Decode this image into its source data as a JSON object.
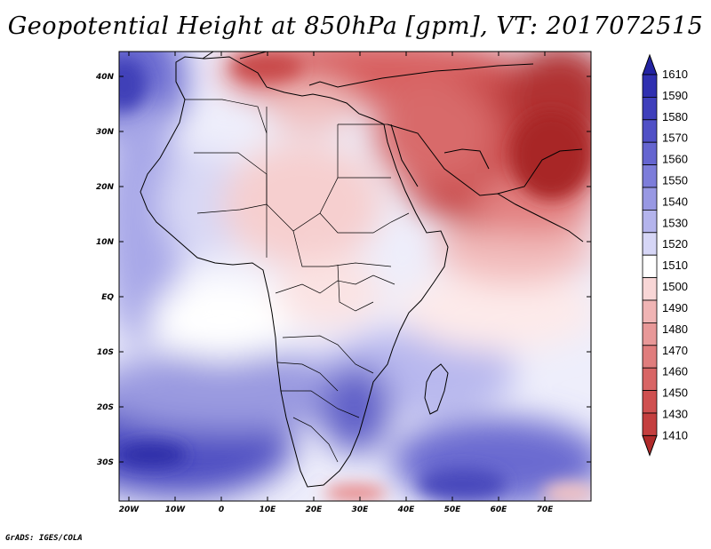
{
  "title": "Geopotential Height at 850hPa [gpm], VT: 2017072515",
  "credit": "GrADS: IGES/COLA",
  "map": {
    "lat_labels": [
      "40N",
      "30N",
      "20N",
      "10N",
      "EQ",
      "10S",
      "20S",
      "30S"
    ],
    "lon_labels": [
      "20W",
      "10W",
      "0",
      "10E",
      "20E",
      "30E",
      "40E",
      "50E",
      "60E",
      "70E"
    ]
  },
  "colorbar": {
    "levels": [
      {
        "label": "1610",
        "color": "#2323a2"
      },
      {
        "label": "1590",
        "color": "#3030b0"
      },
      {
        "label": "1580",
        "color": "#3f3fbb"
      },
      {
        "label": "1570",
        "color": "#5050c6"
      },
      {
        "label": "1560",
        "color": "#6565d0"
      },
      {
        "label": "1550",
        "color": "#7d7dda"
      },
      {
        "label": "1540",
        "color": "#9898e3"
      },
      {
        "label": "1530",
        "color": "#b4b4ec"
      },
      {
        "label": "1520",
        "color": "#d6d6f6"
      },
      {
        "label": "1510",
        "color": "#ffffff"
      },
      {
        "label": "1500",
        "color": "#f8d6d6"
      },
      {
        "label": "1490",
        "color": "#f0b4b4"
      },
      {
        "label": "1480",
        "color": "#e89898"
      },
      {
        "label": "1470",
        "color": "#e07d7d"
      },
      {
        "label": "1460",
        "color": "#d86565"
      },
      {
        "label": "1450",
        "color": "#cf5050"
      },
      {
        "label": "1430",
        "color": "#c43f3f"
      },
      {
        "label": "1410",
        "color": "#b02a2a"
      }
    ]
  }
}
